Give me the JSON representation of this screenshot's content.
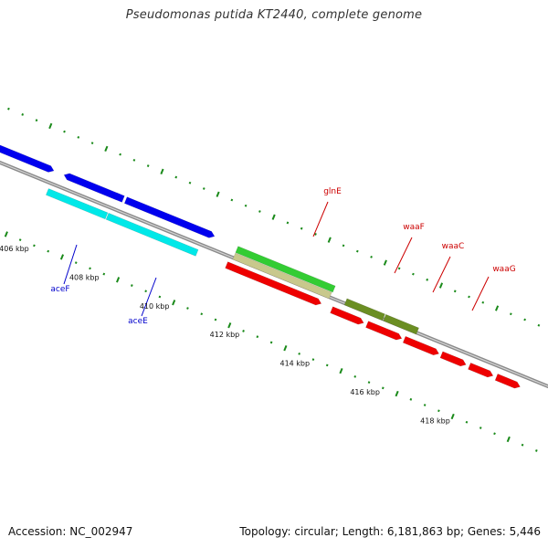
{
  "title": "Pseudomonas putida KT2440, complete genome",
  "footer": {
    "accession": "Accession: NC_002947",
    "stats": "Topology: circular; Length: 6,181,863 bp; Genes: 5,446"
  },
  "colors": {
    "backbone": "#8a8a8a",
    "tick": "#1a8a1a",
    "label_blue": "#0000cc",
    "label_red": "#cc0000"
  },
  "tick_labels": [
    "406 kbp",
    "408 kbp",
    "410 kbp",
    "412 kbp",
    "414 kbp",
    "416 kbp",
    "418 kbp"
  ],
  "gene_labels": [
    {
      "name": "aceF",
      "color": "#0000cc"
    },
    {
      "name": "aceE",
      "color": "#0000cc"
    },
    {
      "name": "glnE",
      "color": "#cc0000"
    },
    {
      "name": "waaF",
      "color": "#cc0000"
    },
    {
      "name": "waaC",
      "color": "#cc0000"
    },
    {
      "name": "waaG",
      "color": "#cc0000"
    }
  ],
  "features": [
    {
      "gene": "",
      "color": "#0000ee"
    },
    {
      "gene": "aceF",
      "color": "#0000ee"
    },
    {
      "gene": "aceE",
      "color": "#0000ee"
    },
    {
      "gene": "aceF",
      "color": "#00e8e8"
    },
    {
      "gene": "aceE",
      "color": "#00e8e8"
    },
    {
      "gene": "glnE",
      "color": "#33cc33"
    },
    {
      "gene": "glnE",
      "color": "#c8c88c"
    },
    {
      "gene": "glnE",
      "color": "#ee0000"
    },
    {
      "gene": "waaF",
      "color": "#6b8e23"
    },
    {
      "gene": "waaC",
      "color": "#6b8e23"
    },
    {
      "gene": "waaF",
      "color": "#ee0000"
    },
    {
      "gene": "waaC",
      "color": "#ee0000"
    },
    {
      "gene": "waaG",
      "color": "#ee0000"
    },
    {
      "gene": "",
      "color": "#ee0000"
    },
    {
      "gene": "",
      "color": "#ee0000"
    },
    {
      "gene": "",
      "color": "#ee0000"
    }
  ]
}
